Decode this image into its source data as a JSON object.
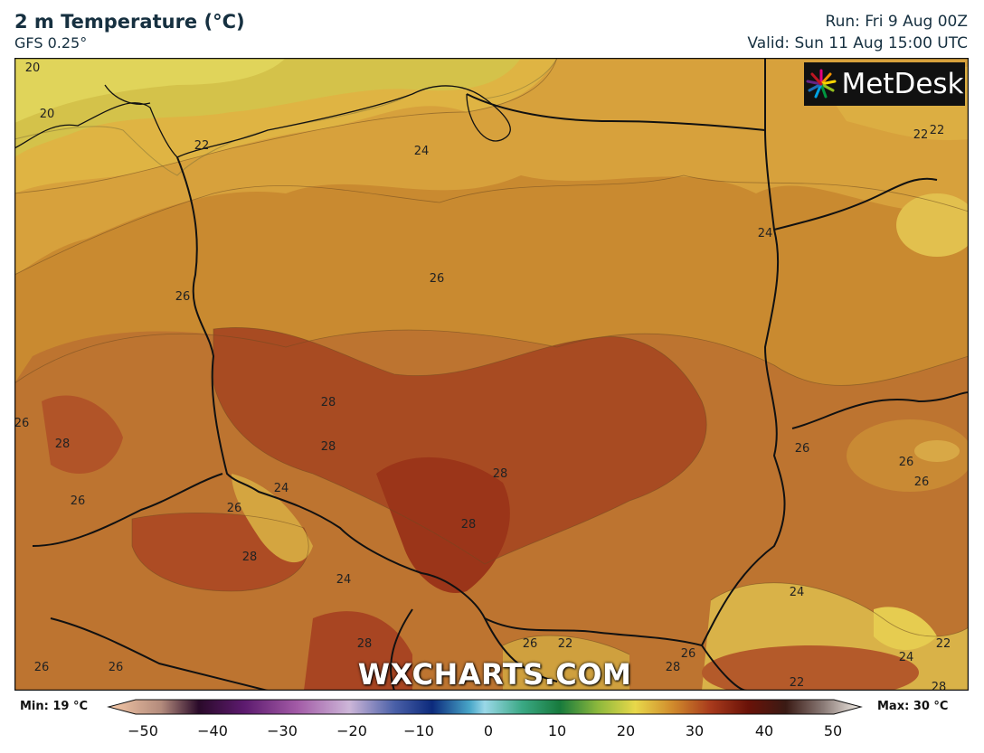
{
  "header": {
    "title": "2 m Temperature (°C)",
    "model": "GFS 0.25°",
    "run": "Run: Fri 9 Aug 00Z",
    "valid": "Valid: Sun 11 Aug 15:00 UTC"
  },
  "logo": {
    "text": "MetDesk",
    "icon": "metdesk-burst-icon"
  },
  "watermark": "WXCHARTS.COM",
  "colorbar": {
    "min_label": "Min: 19 °C",
    "max_label": "Max: 30 °C",
    "ticks": [
      "−50",
      "−40",
      "−30",
      "−20",
      "−10",
      "0",
      "10",
      "20",
      "30",
      "40",
      "50"
    ]
  },
  "map_labels": [
    {
      "text": "20"
    },
    {
      "text": "20"
    },
    {
      "text": "22"
    },
    {
      "text": "24"
    },
    {
      "text": "22"
    },
    {
      "text": "22"
    },
    {
      "text": "24"
    },
    {
      "text": "26"
    },
    {
      "text": "26"
    },
    {
      "text": "28"
    },
    {
      "text": "28"
    },
    {
      "text": "28"
    },
    {
      "text": "28"
    },
    {
      "text": "26"
    },
    {
      "text": "26"
    },
    {
      "text": "24"
    },
    {
      "text": "26"
    },
    {
      "text": "28"
    },
    {
      "text": "28"
    },
    {
      "text": "24"
    },
    {
      "text": "26"
    },
    {
      "text": "26"
    },
    {
      "text": "26"
    },
    {
      "text": "24"
    },
    {
      "text": "24"
    },
    {
      "text": "22"
    },
    {
      "text": "22"
    },
    {
      "text": "26"
    },
    {
      "text": "28"
    },
    {
      "text": "26"
    },
    {
      "text": "26"
    },
    {
      "text": "28"
    },
    {
      "text": "22"
    },
    {
      "text": "26"
    },
    {
      "text": "28"
    }
  ],
  "colors": {
    "warm_base": "#c9862c",
    "cool_yellow": "#e6ce4a",
    "hot_core": "#a8401f",
    "border": "#111111"
  }
}
